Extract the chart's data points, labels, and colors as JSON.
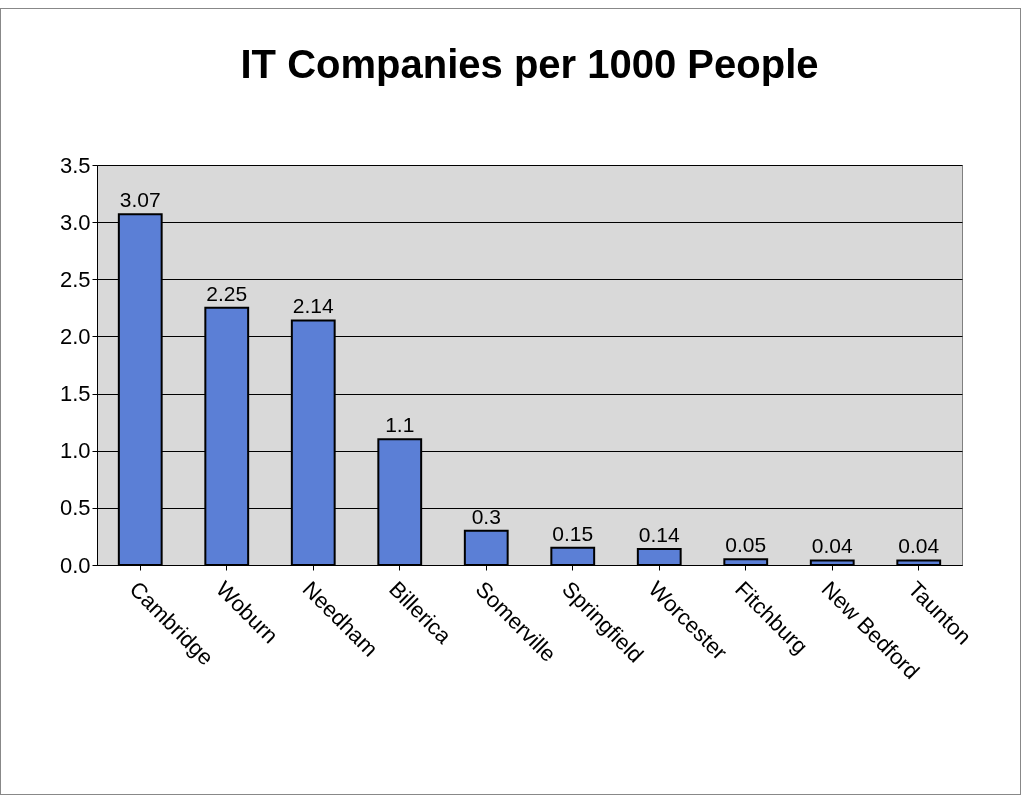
{
  "chart_data": {
    "type": "bar",
    "title": "IT Companies per 1000 People",
    "categories": [
      "Cambridge",
      "Woburn",
      "Needham",
      "Billerica",
      "Somerville",
      "Springfield",
      "Worcester",
      "Fitchburg",
      "New Bedford",
      "Taunton"
    ],
    "values": [
      3.07,
      2.25,
      2.14,
      1.1,
      0.3,
      0.15,
      0.14,
      0.05,
      0.04,
      0.04
    ],
    "color": "#5b7fd6",
    "ylim": [
      0,
      3.5
    ],
    "yticks": [
      {
        "value": 0,
        "label": "0.0"
      },
      {
        "value": 0.5,
        "label": "0.5"
      },
      {
        "value": 1,
        "label": "1.0"
      },
      {
        "value": 1.5,
        "label": "1.5"
      },
      {
        "value": 2,
        "label": "2.0"
      },
      {
        "value": 2.5,
        "label": "2.5"
      },
      {
        "value": 3,
        "label": "3.0"
      },
      {
        "value": 3.5,
        "label": "3.5"
      }
    ],
    "grid": "y",
    "data_labels": true
  }
}
